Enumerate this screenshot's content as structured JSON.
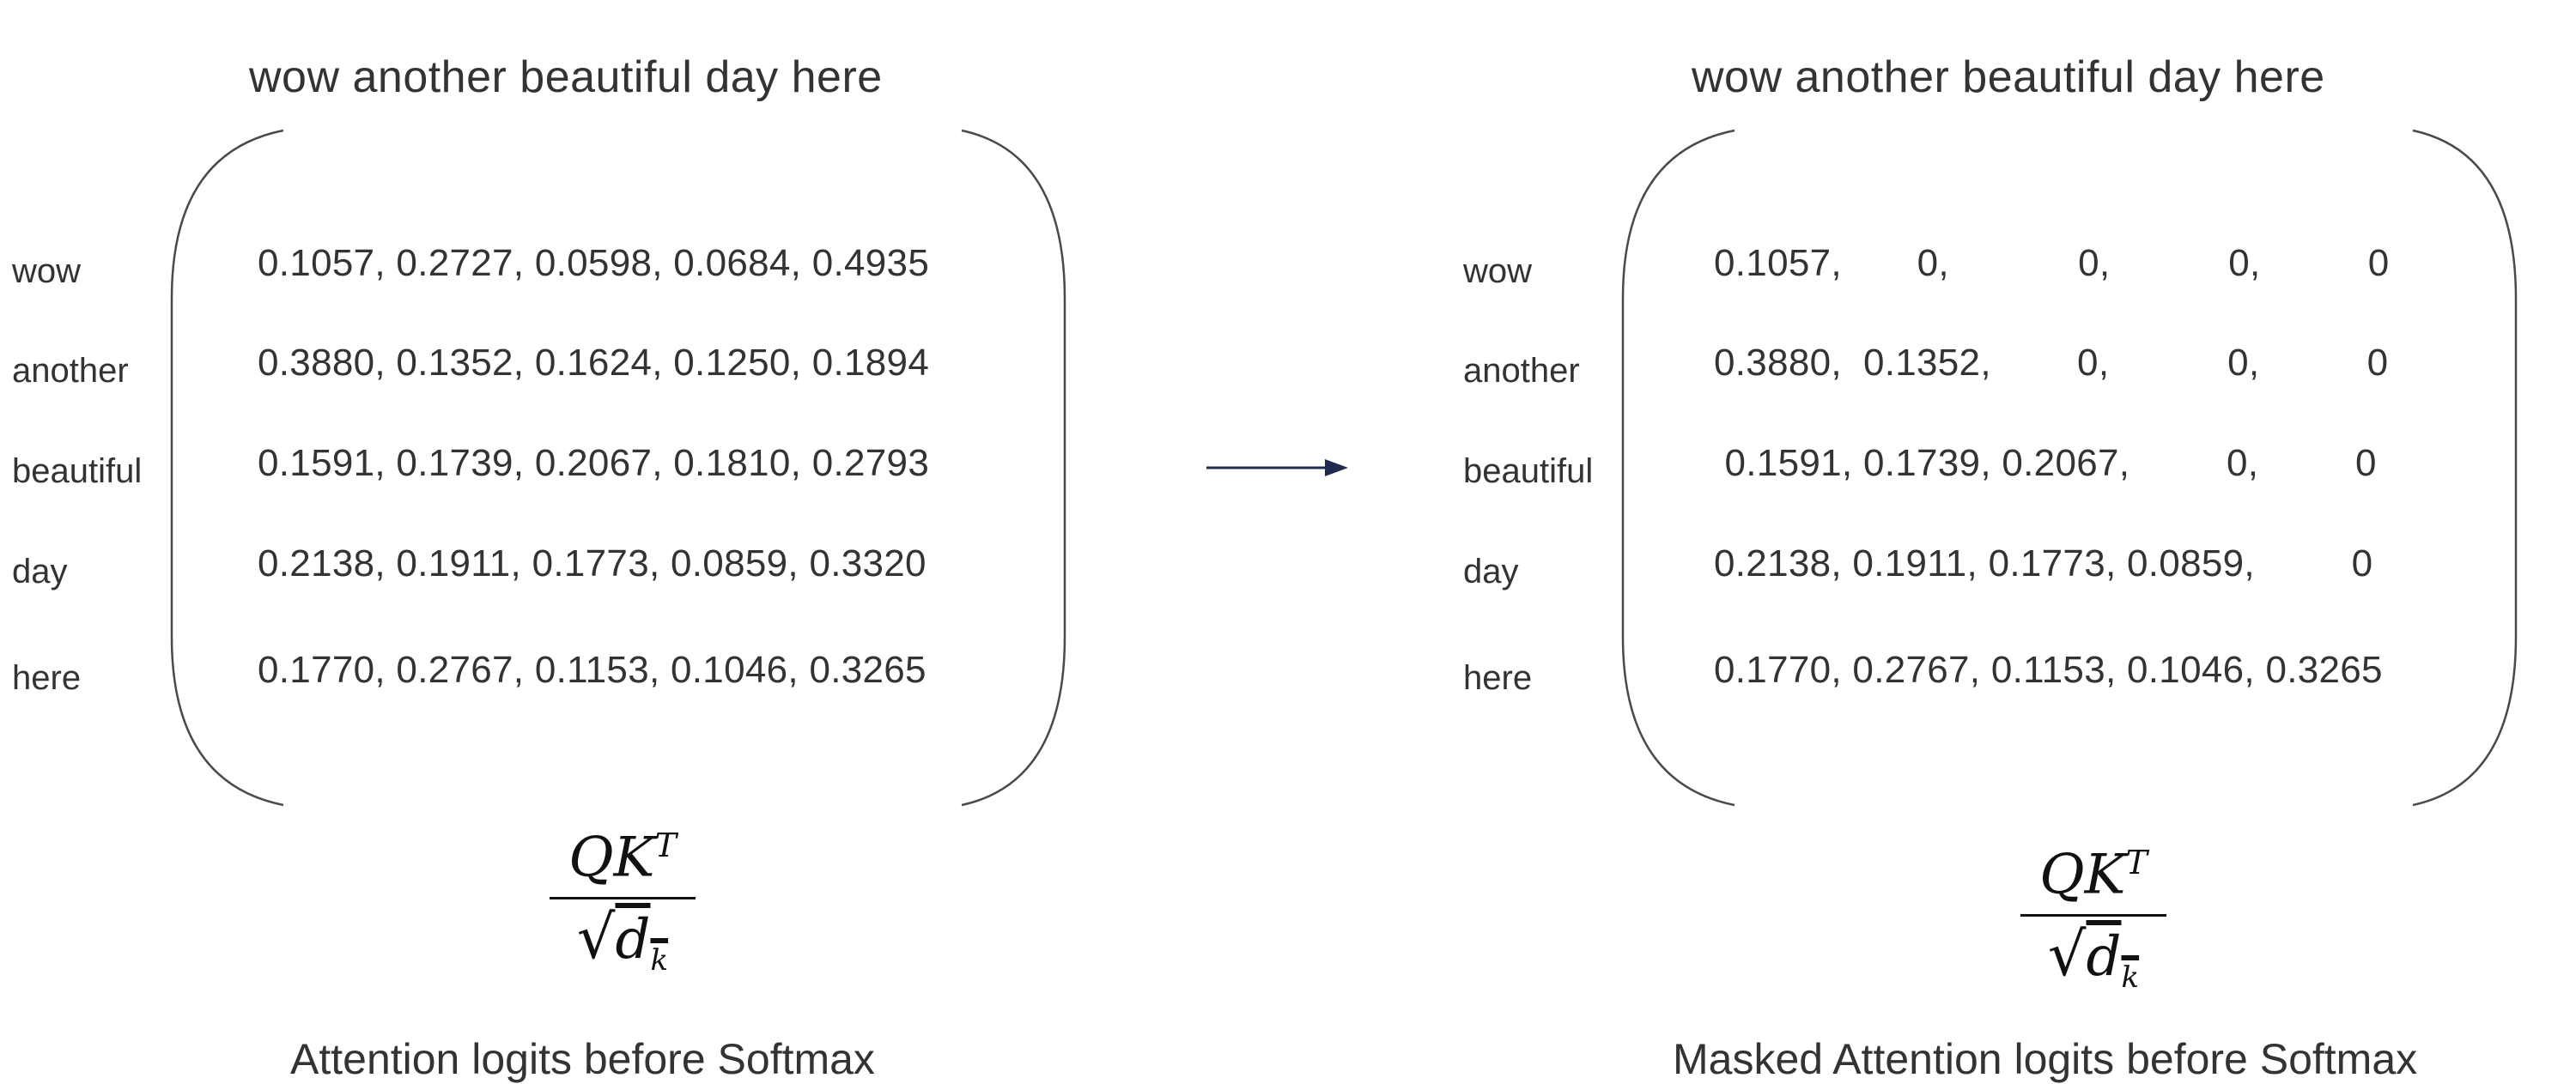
{
  "left": {
    "header": "wow another beautiful day here",
    "rows": [
      {
        "label": "wow",
        "values": "0.1057, 0.2727, 0.0598, 0.0684, 0.4935"
      },
      {
        "label": "another",
        "values": "0.3880, 0.1352, 0.1624, 0.1250, 0.1894"
      },
      {
        "label": "beautiful",
        "values": "0.1591, 0.1739, 0.2067, 0.1810, 0.2793"
      },
      {
        "label": "day",
        "values": "0.2138, 0.1911, 0.1773, 0.0859, 0.3320"
      },
      {
        "label": "here",
        "values": "0.1770, 0.2767, 0.1153, 0.1046, 0.3265"
      }
    ],
    "formula": {
      "numerator": "QK",
      "superscript": "T",
      "radicand": "d",
      "subscript": "k"
    },
    "caption": "Attention logits before Softmax"
  },
  "right": {
    "header": "wow another beautiful day here",
    "rows": [
      {
        "label": "wow",
        "values": "0.1057,       0,            0,           0,          0"
      },
      {
        "label": "another",
        "values": "0.3880,  0.1352,        0,           0,          0"
      },
      {
        "label": "beautiful",
        "values": " 0.1591, 0.1739, 0.2067,         0,         0"
      },
      {
        "label": "day",
        "values": "0.2138, 0.1911, 0.1773, 0.0859,         0"
      },
      {
        "label": "here",
        "values": "0.1770, 0.2767, 0.1153, 0.1046, 0.3265"
      }
    ],
    "formula": {
      "numerator": "QK",
      "superscript": "T",
      "radicand": "d",
      "subscript": "k"
    },
    "caption": "Masked Attention logits before Softmax"
  },
  "arrow_color": "#1f2a4f"
}
